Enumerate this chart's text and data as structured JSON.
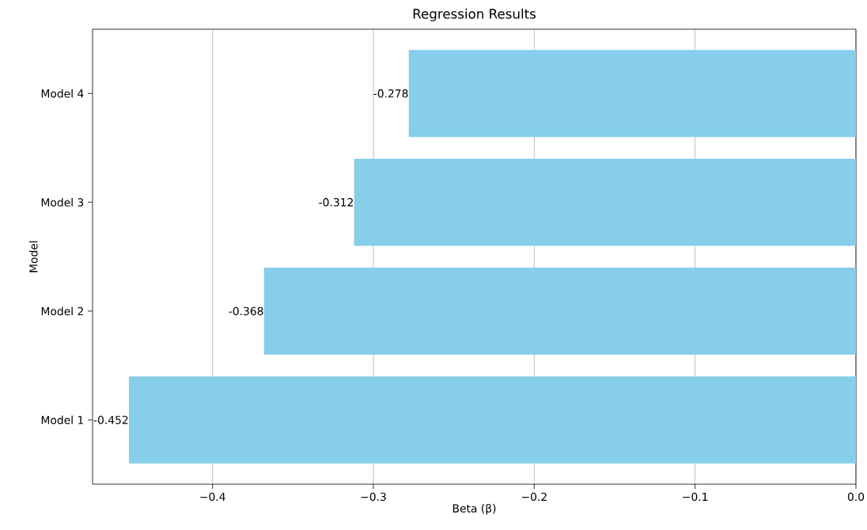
{
  "chart_data": {
    "type": "bar",
    "orientation": "horizontal",
    "title": "Regression Results",
    "xlabel": "Beta (β)",
    "ylabel": "Model",
    "categories": [
      "Model 4",
      "Model 3",
      "Model 2",
      "Model 1"
    ],
    "values": [
      -0.278,
      -0.312,
      -0.368,
      -0.452
    ],
    "color": "#87ceeb",
    "xlim": [
      -0.4746,
      0
    ],
    "xticks": [
      {
        "value": -0.4,
        "label": "−0.4"
      },
      {
        "value": -0.3,
        "label": "−0.3"
      },
      {
        "value": -0.2,
        "label": "−0.2"
      },
      {
        "value": -0.1,
        "label": "−0.1"
      },
      {
        "value": 0,
        "label": "0.0"
      }
    ],
    "grid": "x",
    "data_labels": true
  }
}
